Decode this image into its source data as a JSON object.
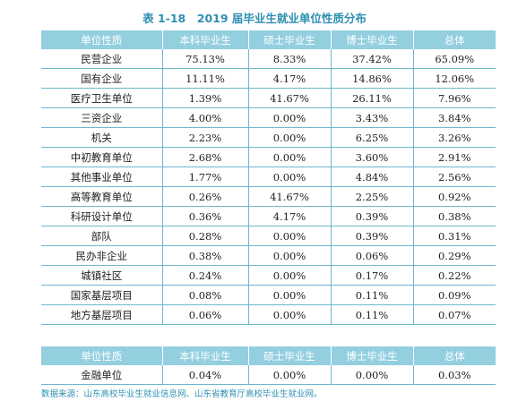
{
  "title": "表 1-18　2019 届毕业生就业单位性质分布",
  "headers": [
    "单位性质",
    "本科毕业生",
    "硕士毕业生",
    "博士毕业生",
    "总体"
  ],
  "rows": [
    [
      "民营企业",
      "75.13%",
      "8.33%",
      "37.42%",
      "65.09%"
    ],
    [
      "国有企业",
      "11.11%",
      "4.17%",
      "14.86%",
      "12.06%"
    ],
    [
      "医疗卫生单位",
      "1.39%",
      "41.67%",
      "26.11%",
      "7.96%"
    ],
    [
      "三资企业",
      "4.00%",
      "0.00%",
      "3.43%",
      "3.84%"
    ],
    [
      "机关",
      "2.23%",
      "0.00%",
      "6.25%",
      "3.26%"
    ],
    [
      "中初教育单位",
      "2.68%",
      "0.00%",
      "3.60%",
      "2.91%"
    ],
    [
      "其他事业单位",
      "1.77%",
      "0.00%",
      "4.84%",
      "2.56%"
    ],
    [
      "高等教育单位",
      "0.26%",
      "41.67%",
      "2.25%",
      "0.92%"
    ],
    [
      "科研设计单位",
      "0.36%",
      "4.17%",
      "0.39%",
      "0.38%"
    ],
    [
      "部队",
      "0.28%",
      "0.00%",
      "0.39%",
      "0.31%"
    ],
    [
      "民办非企业",
      "0.38%",
      "0.00%",
      "0.06%",
      "0.29%"
    ],
    [
      "城镇社区",
      "0.24%",
      "0.00%",
      "0.17%",
      "0.22%"
    ],
    [
      "国家基层项目",
      "0.08%",
      "0.00%",
      "0.11%",
      "0.09%"
    ],
    [
      "地方基层项目",
      "0.06%",
      "0.00%",
      "0.11%",
      "0.07%"
    ]
  ],
  "footer_headers": [
    "单位性质",
    "本科毕业生",
    "硕士毕业生",
    "博士毕业生",
    "总体"
  ],
  "footer_rows": [
    [
      "金融单位",
      "0.04%",
      "0.00%",
      "0.00%",
      "0.03%"
    ]
  ],
  "source": "数据来源：山东高校毕业生就业信息网、山东省教育厅高校毕业生就业网。"
}
